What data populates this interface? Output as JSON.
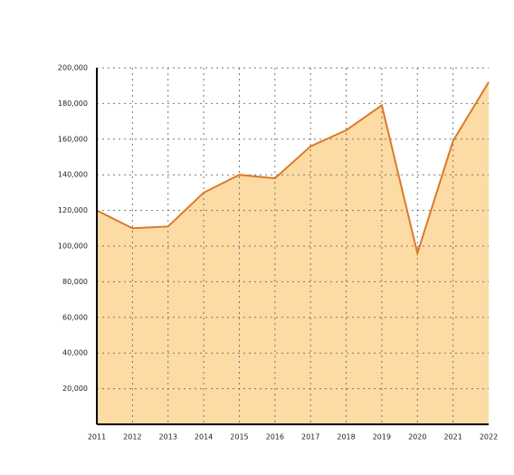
{
  "chart_data": {
    "type": "area",
    "categories": [
      "2011",
      "2012",
      "2013",
      "2014",
      "2015",
      "2016",
      "2017",
      "2018",
      "2019",
      "2020",
      "2021",
      "2022"
    ],
    "values": [
      120000,
      110000,
      111000,
      130000,
      140000,
      138000,
      156000,
      165000,
      179000,
      96000,
      159000,
      192000
    ],
    "color": "#d97a2a",
    "fill": "#fddba4",
    "ylim": [
      0,
      200000
    ],
    "yticks": [
      {
        "value": 20000,
        "label": "20,000"
      },
      {
        "value": 40000,
        "label": "40,000"
      },
      {
        "value": 60000,
        "label": "60,000"
      },
      {
        "value": 80000,
        "label": "80,000"
      },
      {
        "value": 100000,
        "label": "100,000"
      },
      {
        "value": 120000,
        "label": "120,000"
      },
      {
        "value": 140000,
        "label": "140,000"
      },
      {
        "value": 160000,
        "label": "160,000"
      },
      {
        "value": 180000,
        "label": "180,000"
      },
      {
        "value": 200000,
        "label": "200,000"
      }
    ],
    "grid": true
  }
}
